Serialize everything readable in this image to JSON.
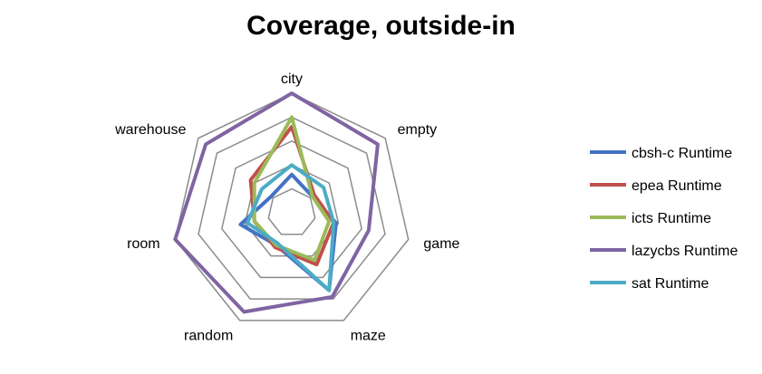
{
  "chart_data": {
    "type": "radar",
    "title": "Coverage, outside-in",
    "categories": [
      "city",
      "empty",
      "game",
      "maze",
      "random",
      "room",
      "warehouse"
    ],
    "rlim": [
      0,
      5
    ],
    "rings": 5,
    "grid": true,
    "legend_position": "right",
    "series": [
      {
        "name": "cbsh-c Runtime",
        "color": "#4472C4",
        "values": [
          1.6,
          1.1,
          1.9,
          3.6,
          1.5,
          2.2,
          1.1
        ]
      },
      {
        "name": "epea Runtime",
        "color": "#C0504D",
        "values": [
          3.6,
          1.2,
          1.8,
          2.4,
          1.6,
          1.6,
          2.2
        ]
      },
      {
        "name": "icts Runtime",
        "color": "#9BBB59",
        "values": [
          4.0,
          1.1,
          1.6,
          2.2,
          1.5,
          1.6,
          2.0
        ]
      },
      {
        "name": "lazycbs Runtime",
        "color": "#8064A2",
        "values": [
          5.0,
          4.6,
          3.3,
          3.9,
          4.6,
          5.0,
          4.6
        ]
      },
      {
        "name": "sat Runtime",
        "color": "#4BACC6",
        "values": [
          2.0,
          1.7,
          1.8,
          3.6,
          1.4,
          1.9,
          1.6
        ]
      }
    ]
  }
}
